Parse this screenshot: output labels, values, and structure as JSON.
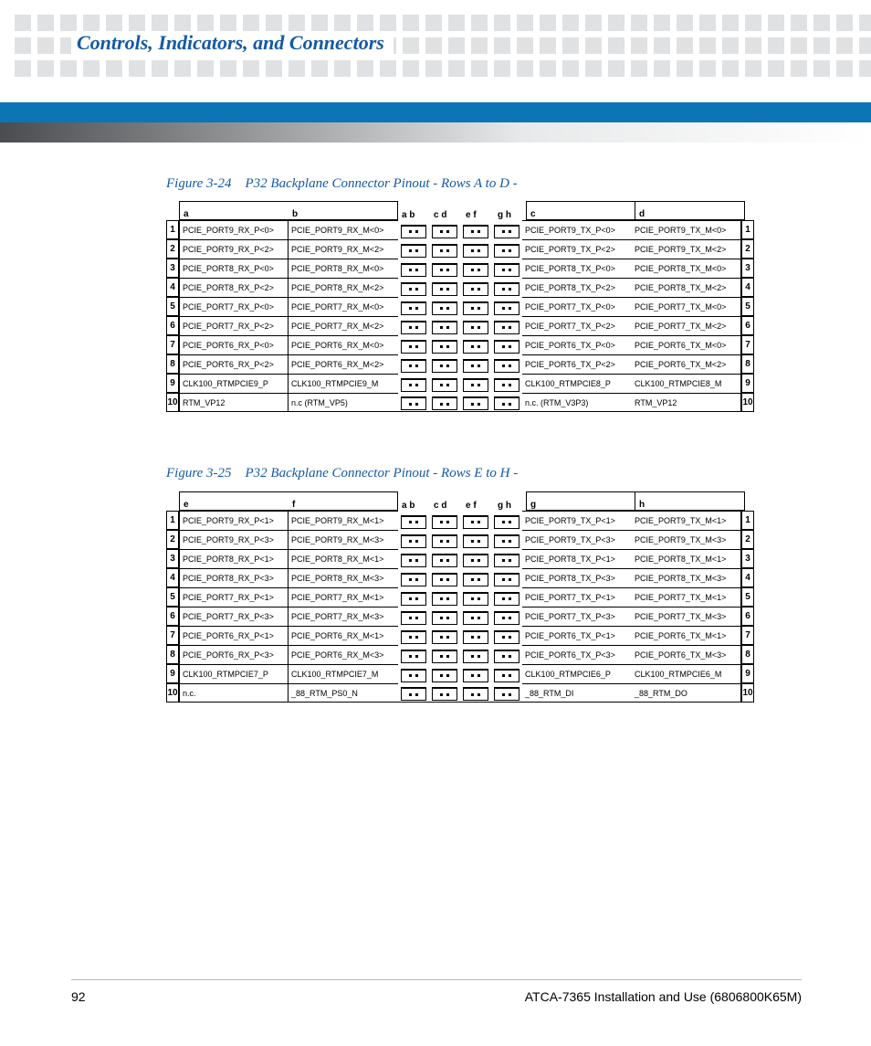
{
  "header": {
    "title": "Controls, Indicators, and Connectors"
  },
  "figures": {
    "f1": {
      "number": "Figure 3-24",
      "title": "P32 Backplane Connector Pinout - Rows A to D -"
    },
    "f2": {
      "number": "Figure 3-25",
      "title": "P32 Backplane Connector Pinout - Rows E to H -"
    }
  },
  "footer": {
    "page": "92",
    "doc": "ATCA-7365 Installation and Use (6806800K65M)"
  },
  "pin_headers_mid": [
    "a b",
    "c d",
    "e f",
    "g h"
  ],
  "table1": {
    "cols": [
      "a",
      "b",
      "c",
      "d"
    ],
    "rows": [
      {
        "n": "1",
        "a": "PCIE_PORT9_RX_P<0>",
        "b": "PCIE_PORT9_RX_M<0>",
        "c": "PCIE_PORT9_TX_P<0>",
        "d": "PCIE_PORT9_TX_M<0>"
      },
      {
        "n": "2",
        "a": "PCIE_PORT9_RX_P<2>",
        "b": "PCIE_PORT9_RX_M<2>",
        "c": "PCIE_PORT9_TX_P<2>",
        "d": "PCIE_PORT9_TX_M<2>"
      },
      {
        "n": "3",
        "a": "PCIE_PORT8_RX_P<0>",
        "b": "PCIE_PORT8_RX_M<0>",
        "c": "PCIE_PORT8_TX_P<0>",
        "d": "PCIE_PORT8_TX_M<0>"
      },
      {
        "n": "4",
        "a": "PCIE_PORT8_RX_P<2>",
        "b": "PCIE_PORT8_RX_M<2>",
        "c": "PCIE_PORT8_TX_P<2>",
        "d": "PCIE_PORT8_TX_M<2>"
      },
      {
        "n": "5",
        "a": "PCIE_PORT7_RX_P<0>",
        "b": "PCIE_PORT7_RX_M<0>",
        "c": "PCIE_PORT7_TX_P<0>",
        "d": "PCIE_PORT7_TX_M<0>"
      },
      {
        "n": "6",
        "a": "PCIE_PORT7_RX_P<2>",
        "b": "PCIE_PORT7_RX_M<2>",
        "c": "PCIE_PORT7_TX_P<2>",
        "d": "PCIE_PORT7_TX_M<2>"
      },
      {
        "n": "7",
        "a": "PCIE_PORT6_RX_P<0>",
        "b": "PCIE_PORT6_RX_M<0>",
        "c": "PCIE_PORT6_TX_P<0>",
        "d": "PCIE_PORT6_TX_M<0>"
      },
      {
        "n": "8",
        "a": "PCIE_PORT6_RX_P<2>",
        "b": "PCIE_PORT6_RX_M<2>",
        "c": "PCIE_PORT6_TX_P<2>",
        "d": "PCIE_PORT6_TX_M<2>"
      },
      {
        "n": "9",
        "a": "CLK100_RTMPCIE9_P",
        "b": "CLK100_RTMPCIE9_M",
        "c": "CLK100_RTMPCIE8_P",
        "d": "CLK100_RTMPCIE8_M"
      },
      {
        "n": "10",
        "a": "RTM_VP12",
        "b": "n.c (RTM_VP5)",
        "c": "n.c. (RTM_V3P3)",
        "d": "RTM_VP12"
      }
    ]
  },
  "table2": {
    "cols": [
      "e",
      "f",
      "g",
      "h"
    ],
    "rows": [
      {
        "n": "1",
        "a": "PCIE_PORT9_RX_P<1>",
        "b": "PCIE_PORT9_RX_M<1>",
        "c": "PCIE_PORT9_TX_P<1>",
        "d": "PCIE_PORT9_TX_M<1>"
      },
      {
        "n": "2",
        "a": "PCIE_PORT9_RX_P<3>",
        "b": "PCIE_PORT9_RX_M<3>",
        "c": "PCIE_PORT9_TX_P<3>",
        "d": "PCIE_PORT9_TX_M<3>"
      },
      {
        "n": "3",
        "a": "PCIE_PORT8_RX_P<1>",
        "b": "PCIE_PORT8_RX_M<1>",
        "c": "PCIE_PORT8_TX_P<1>",
        "d": "PCIE_PORT8_TX_M<1>"
      },
      {
        "n": "4",
        "a": "PCIE_PORT8_RX_P<3>",
        "b": "PCIE_PORT8_RX_M<3>",
        "c": "PCIE_PORT8_TX_P<3>",
        "d": "PCIE_PORT8_TX_M<3>"
      },
      {
        "n": "5",
        "a": "PCIE_PORT7_RX_P<1>",
        "b": "PCIE_PORT7_RX_M<1>",
        "c": "PCIE_PORT7_TX_P<1>",
        "d": "PCIE_PORT7_TX_M<1>"
      },
      {
        "n": "6",
        "a": "PCIE_PORT7_RX_P<3>",
        "b": "PCIE_PORT7_RX_M<3>",
        "c": "PCIE_PORT7_TX_P<3>",
        "d": "PCIE_PORT7_TX_M<3>"
      },
      {
        "n": "7",
        "a": "PCIE_PORT6_RX_P<1>",
        "b": "PCIE_PORT6_RX_M<1>",
        "c": "PCIE_PORT6_TX_P<1>",
        "d": "PCIE_PORT6_TX_M<1>"
      },
      {
        "n": "8",
        "a": "PCIE_PORT6_RX_P<3>",
        "b": "PCIE_PORT6_RX_M<3>",
        "c": "PCIE_PORT6_TX_P<3>",
        "d": "PCIE_PORT6_TX_M<3>"
      },
      {
        "n": "9",
        "a": "CLK100_RTMPCIE7_P",
        "b": "CLK100_RTMPCIE7_M",
        "c": "CLK100_RTMPCIE6_P",
        "d": "CLK100_RTMPCIE6_M"
      },
      {
        "n": "10",
        "a": "n.c.",
        "b": "_88_RTM_PS0_N",
        "c": "_88_RTM_DI",
        "d": "_88_RTM_DO"
      }
    ]
  }
}
